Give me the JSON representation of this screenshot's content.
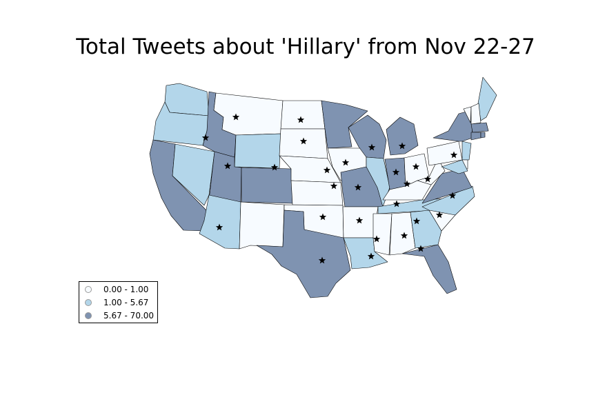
{
  "title": "Total Tweets about 'Hillary' from Nov 22-27",
  "colors": {
    "low": "#f7fbff",
    "mid": "#b3d6ea",
    "high": "#7f93b1",
    "border": "#000000"
  },
  "legend": [
    {
      "label": "0.00 - 1.00",
      "color": "#f7fbff"
    },
    {
      "label": "1.00 - 5.67",
      "color": "#b3d6ea"
    },
    {
      "label": "5.67 - 70.00",
      "color": "#7f93b1"
    }
  ],
  "states": [
    {
      "name": "WA",
      "level": "mid"
    },
    {
      "name": "OR",
      "level": "mid"
    },
    {
      "name": "CA",
      "level": "high"
    },
    {
      "name": "ID",
      "level": "high"
    },
    {
      "name": "NV",
      "level": "mid"
    },
    {
      "name": "MT",
      "level": "low"
    },
    {
      "name": "WY",
      "level": "mid"
    },
    {
      "name": "UT",
      "level": "high"
    },
    {
      "name": "AZ",
      "level": "mid"
    },
    {
      "name": "CO",
      "level": "high"
    },
    {
      "name": "NM",
      "level": "low"
    },
    {
      "name": "ND",
      "level": "low"
    },
    {
      "name": "SD",
      "level": "low"
    },
    {
      "name": "NE",
      "level": "low"
    },
    {
      "name": "KS",
      "level": "low"
    },
    {
      "name": "OK",
      "level": "low"
    },
    {
      "name": "TX",
      "level": "high"
    },
    {
      "name": "MN",
      "level": "high"
    },
    {
      "name": "IA",
      "level": "low"
    },
    {
      "name": "MO",
      "level": "high"
    },
    {
      "name": "AR",
      "level": "low"
    },
    {
      "name": "LA",
      "level": "mid"
    },
    {
      "name": "WI",
      "level": "high"
    },
    {
      "name": "IL",
      "level": "mid"
    },
    {
      "name": "MI",
      "level": "high"
    },
    {
      "name": "IN",
      "level": "high"
    },
    {
      "name": "OH",
      "level": "low"
    },
    {
      "name": "KY",
      "level": "low"
    },
    {
      "name": "TN",
      "level": "mid"
    },
    {
      "name": "MS",
      "level": "low"
    },
    {
      "name": "AL",
      "level": "low"
    },
    {
      "name": "GA",
      "level": "mid"
    },
    {
      "name": "FL",
      "level": "high"
    },
    {
      "name": "SC",
      "level": "low"
    },
    {
      "name": "NC",
      "level": "mid"
    },
    {
      "name": "VA",
      "level": "high"
    },
    {
      "name": "WV",
      "level": "low"
    },
    {
      "name": "PA",
      "level": "low"
    },
    {
      "name": "NY",
      "level": "high"
    },
    {
      "name": "ME",
      "level": "mid"
    },
    {
      "name": "VT",
      "level": "low"
    },
    {
      "name": "NH",
      "level": "low"
    },
    {
      "name": "MA",
      "level": "high"
    },
    {
      "name": "CT",
      "level": "high"
    },
    {
      "name": "RI",
      "level": "high"
    },
    {
      "name": "NJ",
      "level": "mid"
    },
    {
      "name": "DE",
      "level": "low"
    },
    {
      "name": "MD",
      "level": "mid"
    }
  ],
  "markers": [
    "MT",
    "ID",
    "UT",
    "CO",
    "ND",
    "SD",
    "NE",
    "KS",
    "OK",
    "TX",
    "IA",
    "WI",
    "MO",
    "AR",
    "MS",
    "AL",
    "FL",
    "GA",
    "SC",
    "NC",
    "TN",
    "KY",
    "IN",
    "MI",
    "OH",
    "WV",
    "PA",
    "AZ",
    "LA"
  ]
}
